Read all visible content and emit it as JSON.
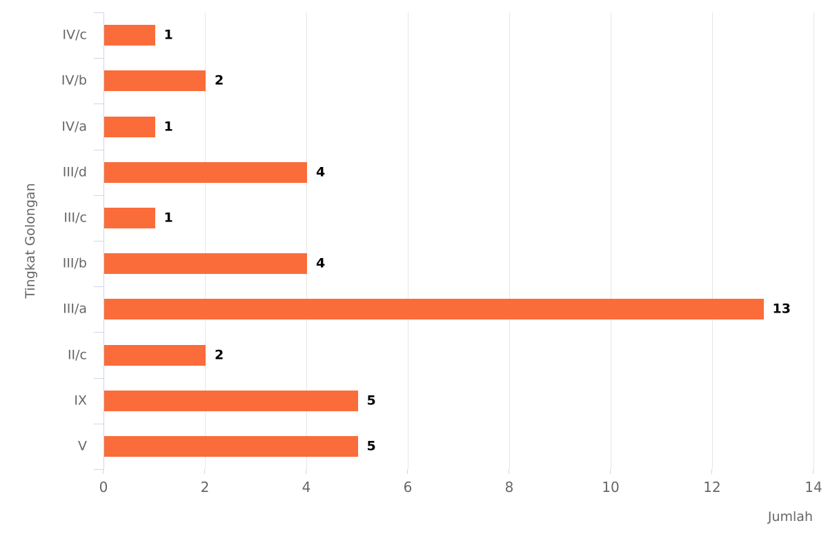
{
  "chart_data": {
    "type": "bar",
    "orientation": "horizontal",
    "categories": [
      "IV/c",
      "IV/b",
      "IV/a",
      "III/d",
      "III/c",
      "III/b",
      "III/a",
      "II/c",
      "IX",
      "V"
    ],
    "values": [
      1,
      2,
      1,
      4,
      1,
      4,
      13,
      2,
      5,
      5
    ],
    "xlabel": "Jumlah",
    "ylabel": "Tingkat Golongan",
    "xlim": [
      0,
      14
    ],
    "x_ticks": [
      0,
      2,
      4,
      6,
      8,
      10,
      12,
      14
    ],
    "grid": true,
    "legend": false,
    "data_labels": true
  },
  "colors": {
    "bar": "#FB6C3B",
    "gridline": "#E6E6E6",
    "axis_line": "#CCD6EB",
    "tick_label": "#666666",
    "axis_title": "#666666",
    "data_label": "#000000",
    "background": "#FFFFFF"
  }
}
